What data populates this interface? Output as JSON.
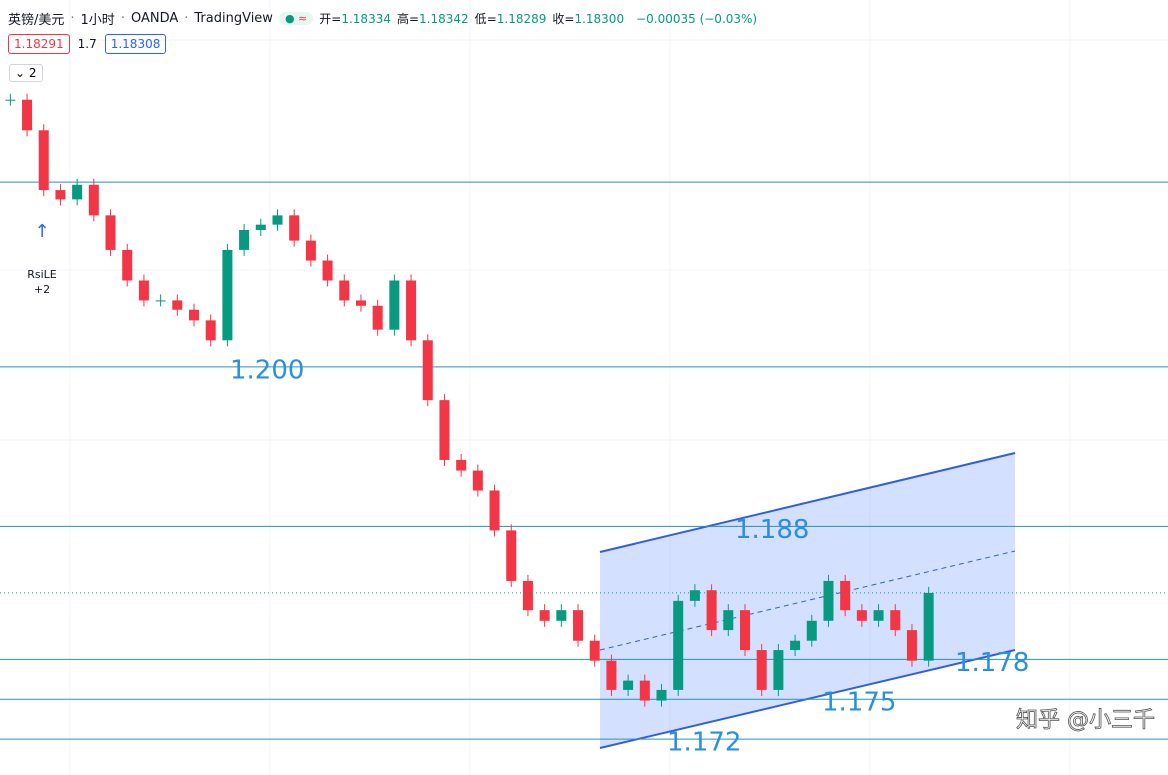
{
  "chart_data": {
    "type": "candlestick",
    "header": {
      "symbol": "英镑/美元",
      "interval": "1小时",
      "broker": "OANDA",
      "platform": "TradingView",
      "ohlc": [
        {
          "label": "开",
          "value": "1.18334"
        },
        {
          "label": "高",
          "value": "1.18342"
        },
        {
          "label": "低",
          "value": "1.18289"
        },
        {
          "label": "收",
          "value": "1.18300"
        }
      ],
      "change": "−0.00035 (−0.03%)"
    },
    "bid": "1.18291",
    "spread": "1.7",
    "ask": "1.18308",
    "indicator_count": "2",
    "signal": {
      "name": "RsiLE",
      "count": "+2"
    },
    "watermark": "知乎 @小三千",
    "ylim": [
      1.1693,
      1.2276
    ],
    "levels": [
      {
        "value": 1.2139,
        "label": null
      },
      {
        "value": 1.2,
        "label": "1.200"
      },
      {
        "value": 1.188,
        "label": "1.188"
      },
      {
        "value": 1.178,
        "label": "1.178"
      },
      {
        "value": 1.175,
        "label": "1.175"
      },
      {
        "value": 1.172,
        "label": "1.172"
      }
    ],
    "series": [
      {
        "name": "GBPUSD",
        "up_color": "#089981",
        "down_color": "#f23645",
        "values": [
          1.2201,
          1.2178,
          1.2133,
          1.2126,
          1.2137,
          1.2114,
          1.2088,
          1.2065,
          1.205,
          1.205,
          1.2043,
          1.2035,
          1.202,
          1.2088,
          1.2103,
          1.2107,
          1.2114,
          1.2095,
          1.208,
          1.2065,
          1.205,
          1.2046,
          1.2028,
          1.2065,
          1.202,
          1.1975,
          1.193,
          1.1922,
          1.1907,
          1.1877,
          1.1839,
          1.1817,
          1.1809,
          1.1817,
          1.1794,
          1.1779,
          1.1757,
          1.1764,
          1.1749,
          1.1757,
          1.1824,
          1.1832,
          1.1802,
          1.1817,
          1.1787,
          1.1757,
          1.1787,
          1.1794,
          1.1809,
          1.1839,
          1.1817,
          1.1809,
          1.1817,
          1.1802,
          1.1779,
          1.183
        ]
      }
    ]
  }
}
